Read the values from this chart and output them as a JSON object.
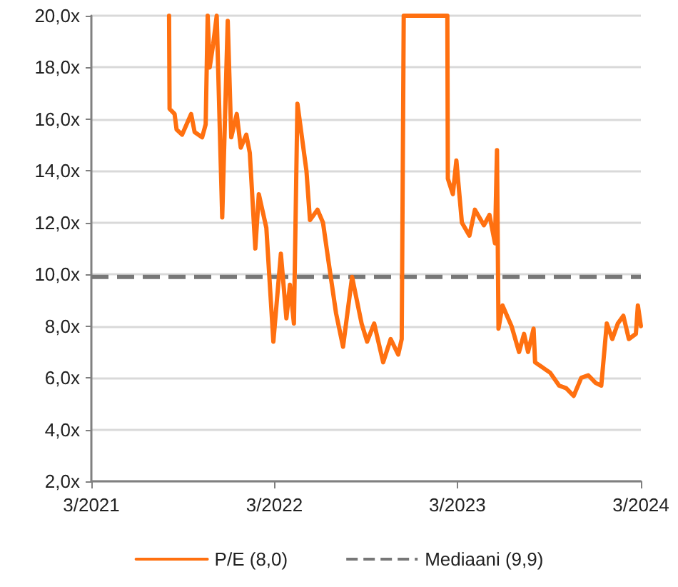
{
  "chart_data": {
    "type": "line",
    "x": [
      "2021-08-03",
      "2021-08-04",
      "2021-08-14",
      "2021-08-18",
      "2021-08-29",
      "2021-09-16",
      "2021-09-23",
      "2021-10-08",
      "2021-10-15",
      "2021-10-19",
      "2021-10-23",
      "2021-10-30",
      "2021-11-06",
      "2021-11-17",
      "2021-11-28",
      "2021-12-05",
      "2021-12-16",
      "2021-12-24",
      "2022-01-04",
      "2022-01-11",
      "2022-01-22",
      "2022-01-29",
      "2022-02-13",
      "2022-02-27",
      "2022-03-14",
      "2022-03-25",
      "2022-04-01",
      "2022-04-09",
      "2022-04-16",
      "2022-05-04",
      "2022-05-11",
      "2022-05-26",
      "2022-06-06",
      "2022-06-17",
      "2022-07-02",
      "2022-07-16",
      "2022-08-03",
      "2022-08-22",
      "2022-09-02",
      "2022-09-16",
      "2022-10-04",
      "2022-10-19",
      "2022-11-03",
      "2022-11-10",
      "2022-11-14",
      "2023-02-09",
      "2023-02-10",
      "2023-02-20",
      "2023-02-27",
      "2023-03-10",
      "2023-03-25",
      "2023-04-05",
      "2023-04-23",
      "2023-05-04",
      "2023-05-15",
      "2023-05-19",
      "2023-05-22",
      "2023-05-30",
      "2023-06-17",
      "2023-07-02",
      "2023-07-12",
      "2023-07-20",
      "2023-07-31",
      "2023-08-03",
      "2023-09-02",
      "2023-09-20",
      "2023-10-04",
      "2023-10-19",
      "2023-11-03",
      "2023-11-17",
      "2023-12-02",
      "2023-12-13",
      "2023-12-24",
      "2024-01-04",
      "2024-01-15",
      "2024-01-26",
      "2024-02-06",
      "2024-02-20",
      "2024-02-24",
      "2024-03-01"
    ],
    "series": [
      {
        "name": "P/E (8,0)",
        "color": "#ff7010",
        "values": [
          20,
          16.4,
          16.2,
          15.6,
          15.4,
          16.2,
          15.5,
          15.3,
          15.8,
          20,
          18,
          18.9,
          20,
          12.2,
          19.8,
          15.3,
          16.2,
          14.9,
          15.4,
          14.7,
          11,
          13.1,
          11.8,
          7.4,
          10.8,
          8.3,
          9.6,
          8.1,
          16.6,
          14,
          12.1,
          12.5,
          12,
          10.5,
          8.5,
          7.2,
          9.9,
          8.1,
          7.4,
          8.1,
          6.6,
          7.5,
          6.9,
          7.5,
          20,
          20,
          13.7,
          13.1,
          14.4,
          12,
          11.5,
          12.5,
          11.9,
          12.3,
          11.2,
          14.8,
          7.9,
          8.8,
          8,
          7,
          7.7,
          7,
          7.9,
          6.6,
          6.2,
          5.7,
          5.6,
          5.3,
          6,
          6.1,
          5.8,
          5.7,
          8.1,
          7.5,
          8.1,
          8.4,
          7.5,
          7.7,
          8.8,
          8
        ]
      }
    ],
    "ref_lines": [
      {
        "axis": "y",
        "value": 9.9,
        "label": "Mediaani (9,9)",
        "color": "#777777",
        "line_style": "dashed"
      }
    ],
    "xlim": [
      "2021-03-01",
      "2024-03-01"
    ],
    "xticks": [
      {
        "value": "2021-03-01",
        "label": "3/2021"
      },
      {
        "value": "2022-03-01",
        "label": "3/2022"
      },
      {
        "value": "2023-03-01",
        "label": "3/2023"
      },
      {
        "value": "2024-03-01",
        "label": "3/2024"
      }
    ],
    "ylim": [
      2,
      20
    ],
    "yticks": [
      {
        "value": 2,
        "label": "2,0x"
      },
      {
        "value": 4,
        "label": "4,0x"
      },
      {
        "value": 6,
        "label": "6,0x"
      },
      {
        "value": 8,
        "label": "8,0x"
      },
      {
        "value": 10,
        "label": "10,0x"
      },
      {
        "value": 12,
        "label": "12,0x"
      },
      {
        "value": 14,
        "label": "14,0x"
      },
      {
        "value": 16,
        "label": "16,0x"
      },
      {
        "value": 18,
        "label": "18,0x"
      },
      {
        "value": 20,
        "label": "20,0x"
      }
    ],
    "grid": "y",
    "legend": "bottom",
    "marker": "none",
    "line_style": "solid"
  }
}
